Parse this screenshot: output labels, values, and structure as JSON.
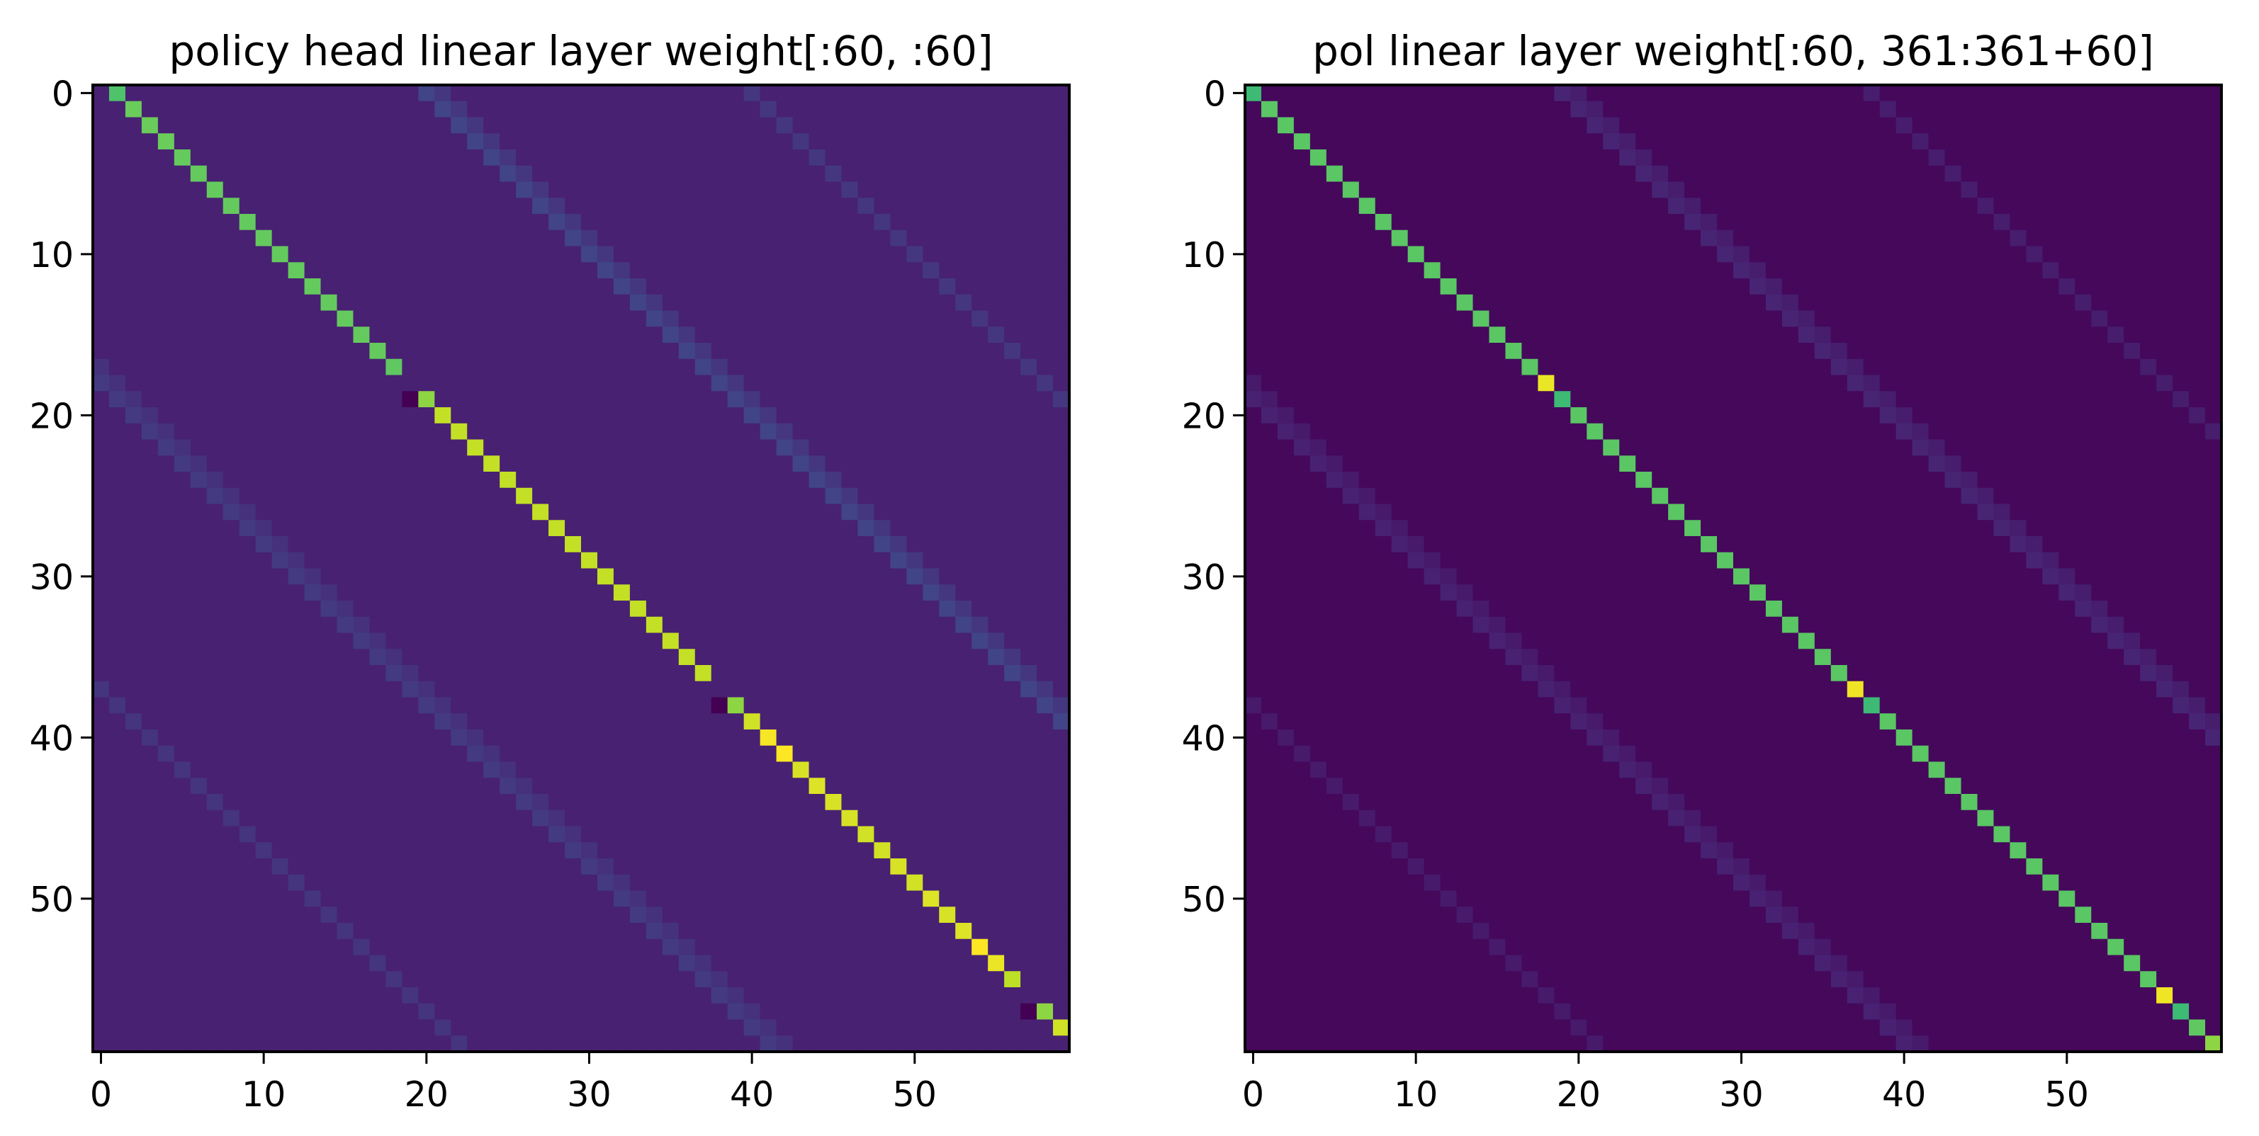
{
  "chart_data": [
    {
      "type": "heatmap",
      "title": "policy head linear layer weight[:60, :60]",
      "rows": 60,
      "cols": 60,
      "colormap": "viridis",
      "value_scale": "normalized 0-1 (no colorbar shown)",
      "xticks": [
        0,
        10,
        20,
        30,
        40,
        50
      ],
      "yticks": [
        0,
        10,
        20,
        30,
        40,
        50
      ],
      "xlim": [
        -0.5,
        59.5
      ],
      "ylim": [
        59.5,
        -0.5
      ],
      "grid": false,
      "background_value": 0.09,
      "stripes": [
        {
          "offset": 20,
          "value": 0.2
        },
        {
          "offset": 21,
          "value": 0.16
        },
        {
          "offset": -18,
          "value": 0.17
        },
        {
          "offset": -17,
          "value": 0.14
        },
        {
          "offset": 40,
          "value": 0.16
        },
        {
          "offset": -37,
          "value": 0.15
        }
      ],
      "cells": [
        [
          0,
          1,
          0.72
        ],
        [
          1,
          2,
          0.77
        ],
        [
          2,
          3,
          0.77
        ],
        [
          3,
          4,
          0.77
        ],
        [
          4,
          5,
          0.76
        ],
        [
          5,
          6,
          0.76
        ],
        [
          6,
          7,
          0.76
        ],
        [
          7,
          8,
          0.76
        ],
        [
          8,
          9,
          0.76
        ],
        [
          9,
          10,
          0.76
        ],
        [
          10,
          11,
          0.76
        ],
        [
          11,
          12,
          0.76
        ],
        [
          12,
          13,
          0.76
        ],
        [
          13,
          14,
          0.76
        ],
        [
          14,
          15,
          0.76
        ],
        [
          15,
          16,
          0.76
        ],
        [
          16,
          17,
          0.76
        ],
        [
          17,
          18,
          0.75
        ],
        [
          19,
          19,
          0.0
        ],
        [
          19,
          20,
          0.83
        ],
        [
          20,
          21,
          0.91
        ],
        [
          21,
          22,
          0.91
        ],
        [
          22,
          23,
          0.91
        ],
        [
          23,
          24,
          0.91
        ],
        [
          24,
          25,
          0.91
        ],
        [
          25,
          26,
          0.91
        ],
        [
          26,
          27,
          0.91
        ],
        [
          27,
          28,
          0.91
        ],
        [
          28,
          29,
          0.91
        ],
        [
          29,
          30,
          0.91
        ],
        [
          30,
          31,
          0.91
        ],
        [
          31,
          32,
          0.91
        ],
        [
          32,
          33,
          0.91
        ],
        [
          33,
          34,
          0.91
        ],
        [
          34,
          35,
          0.91
        ],
        [
          35,
          36,
          0.91
        ],
        [
          36,
          37,
          0.91
        ],
        [
          38,
          38,
          0.0
        ],
        [
          38,
          39,
          0.83
        ],
        [
          39,
          40,
          0.93
        ],
        [
          40,
          41,
          0.99
        ],
        [
          41,
          42,
          1.0
        ],
        [
          42,
          43,
          0.94
        ],
        [
          43,
          44,
          0.95
        ],
        [
          44,
          45,
          0.94
        ],
        [
          45,
          46,
          0.94
        ],
        [
          46,
          47,
          0.93
        ],
        [
          47,
          48,
          0.93
        ],
        [
          48,
          49,
          0.94
        ],
        [
          49,
          50,
          0.93
        ],
        [
          50,
          51,
          0.95
        ],
        [
          51,
          52,
          0.94
        ],
        [
          52,
          53,
          0.95
        ],
        [
          53,
          54,
          1.0
        ],
        [
          54,
          55,
          0.97
        ],
        [
          55,
          56,
          0.9
        ],
        [
          57,
          57,
          0.0
        ],
        [
          57,
          58,
          0.83
        ],
        [
          58,
          59,
          0.93
        ]
      ]
    },
    {
      "type": "heatmap",
      "title": "pol linear layer weight[:60, 361:361+60]",
      "rows": 60,
      "cols": 60,
      "colormap": "viridis",
      "value_scale": "normalized 0-1 (no colorbar shown)",
      "xticks": [
        0,
        10,
        20,
        30,
        40,
        50
      ],
      "yticks": [
        0,
        10,
        20,
        30,
        40,
        50
      ],
      "xlim": [
        -0.5,
        59.5
      ],
      "ylim": [
        59.5,
        -0.5
      ],
      "grid": false,
      "background_value": 0.02,
      "stripes": [
        {
          "offset": 19,
          "value": 0.1
        },
        {
          "offset": 20,
          "value": 0.08
        },
        {
          "offset": -19,
          "value": 0.09
        },
        {
          "offset": -18,
          "value": 0.07
        },
        {
          "offset": 38,
          "value": 0.08
        },
        {
          "offset": -38,
          "value": 0.07
        }
      ],
      "cells": [
        [
          0,
          0,
          0.68
        ],
        [
          1,
          1,
          0.74
        ],
        [
          2,
          2,
          0.74
        ],
        [
          3,
          3,
          0.74
        ],
        [
          4,
          4,
          0.74
        ],
        [
          5,
          5,
          0.74
        ],
        [
          6,
          6,
          0.74
        ],
        [
          7,
          7,
          0.74
        ],
        [
          8,
          8,
          0.74
        ],
        [
          9,
          9,
          0.74
        ],
        [
          10,
          10,
          0.74
        ],
        [
          11,
          11,
          0.74
        ],
        [
          12,
          12,
          0.74
        ],
        [
          13,
          13,
          0.74
        ],
        [
          14,
          14,
          0.74
        ],
        [
          15,
          15,
          0.74
        ],
        [
          16,
          16,
          0.74
        ],
        [
          17,
          17,
          0.74
        ],
        [
          18,
          18,
          0.97
        ],
        [
          19,
          19,
          0.68
        ],
        [
          20,
          20,
          0.74
        ],
        [
          21,
          21,
          0.74
        ],
        [
          22,
          22,
          0.74
        ],
        [
          23,
          23,
          0.74
        ],
        [
          24,
          24,
          0.74
        ],
        [
          25,
          25,
          0.74
        ],
        [
          26,
          26,
          0.74
        ],
        [
          27,
          27,
          0.74
        ],
        [
          28,
          28,
          0.74
        ],
        [
          29,
          29,
          0.74
        ],
        [
          30,
          30,
          0.74
        ],
        [
          31,
          31,
          0.74
        ],
        [
          32,
          32,
          0.74
        ],
        [
          33,
          33,
          0.74
        ],
        [
          34,
          34,
          0.74
        ],
        [
          35,
          35,
          0.74
        ],
        [
          36,
          36,
          0.74
        ],
        [
          37,
          37,
          0.98
        ],
        [
          38,
          38,
          0.68
        ],
        [
          39,
          39,
          0.74
        ],
        [
          40,
          40,
          0.74
        ],
        [
          41,
          41,
          0.74
        ],
        [
          42,
          42,
          0.74
        ],
        [
          43,
          43,
          0.74
        ],
        [
          44,
          44,
          0.74
        ],
        [
          45,
          45,
          0.74
        ],
        [
          46,
          46,
          0.74
        ],
        [
          47,
          47,
          0.74
        ],
        [
          48,
          48,
          0.74
        ],
        [
          49,
          49,
          0.74
        ],
        [
          50,
          50,
          0.74
        ],
        [
          51,
          51,
          0.74
        ],
        [
          52,
          52,
          0.74
        ],
        [
          53,
          53,
          0.74
        ],
        [
          54,
          54,
          0.74
        ],
        [
          55,
          55,
          0.74
        ],
        [
          56,
          56,
          0.98
        ],
        [
          57,
          57,
          0.68
        ],
        [
          58,
          58,
          0.75
        ],
        [
          59,
          59,
          0.83
        ]
      ]
    }
  ]
}
